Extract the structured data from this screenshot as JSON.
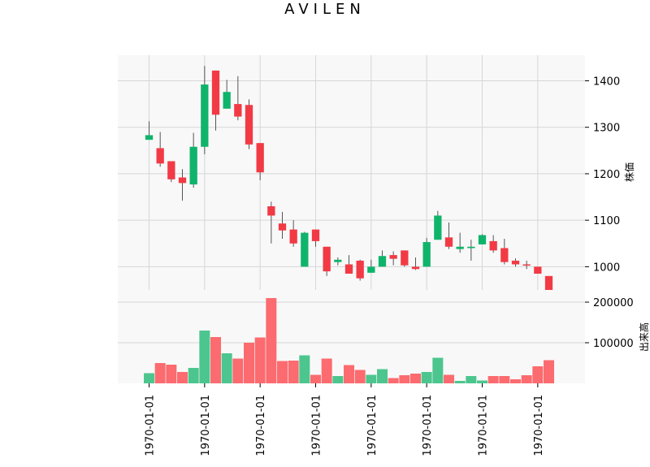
{
  "chart_data": {
    "type": "candlestick",
    "title": "AVILEN",
    "colors": {
      "up": "#0fb46b",
      "down": "#f23a45",
      "volume_up": "#4cc68e",
      "volume_down": "#fb6b6f",
      "wick": "#555555",
      "panel_bg": "#f8f8f8",
      "grid": "#d6d6d6"
    },
    "price_axis": {
      "label": "株価",
      "ticks": [
        1000,
        1100,
        1200,
        1300,
        1400
      ],
      "range": [
        950,
        1455
      ]
    },
    "volume_axis": {
      "label": "出来高",
      "ticks": [
        100000,
        200000
      ],
      "range": [
        0,
        230000
      ]
    },
    "x_tick_labels": [
      "1970-01-01",
      "1970-01-01",
      "1970-01-01",
      "1970-01-01",
      "1970-01-01",
      "1970-01-01",
      "1970-01-01",
      "1970-01-01"
    ],
    "candles": [
      {
        "open": 1273,
        "high": 1313,
        "low": 1273,
        "close": 1283,
        "volume": 25000
      },
      {
        "open": 1255,
        "high": 1290,
        "low": 1215,
        "close": 1222,
        "volume": 50000
      },
      {
        "open": 1227,
        "high": 1227,
        "low": 1182,
        "close": 1188,
        "volume": 46000
      },
      {
        "open": 1192,
        "high": 1210,
        "low": 1142,
        "close": 1180,
        "volume": 28000
      },
      {
        "open": 1177,
        "high": 1288,
        "low": 1170,
        "close": 1258,
        "volume": 38000
      },
      {
        "open": 1258,
        "high": 1432,
        "low": 1242,
        "close": 1392,
        "volume": 130000
      },
      {
        "open": 1422,
        "high": 1422,
        "low": 1293,
        "close": 1327,
        "volume": 114000
      },
      {
        "open": 1340,
        "high": 1402,
        "low": 1340,
        "close": 1376,
        "volume": 74000
      },
      {
        "open": 1350,
        "high": 1410,
        "low": 1315,
        "close": 1323,
        "volume": 61000
      },
      {
        "open": 1348,
        "high": 1360,
        "low": 1253,
        "close": 1263,
        "volume": 100000
      },
      {
        "open": 1266,
        "high": 1266,
        "low": 1186,
        "close": 1203,
        "volume": 113000
      },
      {
        "open": 1130,
        "high": 1140,
        "low": 1050,
        "close": 1110,
        "volume": 210000
      },
      {
        "open": 1093,
        "high": 1118,
        "low": 1060,
        "close": 1078,
        "volume": 55000
      },
      {
        "open": 1080,
        "high": 1100,
        "low": 1043,
        "close": 1050,
        "volume": 56000
      },
      {
        "open": 1000,
        "high": 1075,
        "low": 1000,
        "close": 1073,
        "volume": 69000
      },
      {
        "open": 1080,
        "high": 1080,
        "low": 1043,
        "close": 1055,
        "volume": 21000
      },
      {
        "open": 1043,
        "high": 1043,
        "low": 980,
        "close": 990,
        "volume": 61000
      },
      {
        "open": 1010,
        "high": 1020,
        "low": 1003,
        "close": 1015,
        "volume": 18000
      },
      {
        "open": 1005,
        "high": 1025,
        "low": 985,
        "close": 985,
        "volume": 45000
      },
      {
        "open": 1013,
        "high": 1015,
        "low": 970,
        "close": 975,
        "volume": 33000
      },
      {
        "open": 987,
        "high": 1015,
        "low": 987,
        "close": 1000,
        "volume": 21000
      },
      {
        "open": 1000,
        "high": 1035,
        "low": 1000,
        "close": 1023,
        "volume": 35000
      },
      {
        "open": 1025,
        "high": 1033,
        "low": 1003,
        "close": 1017,
        "volume": 13000
      },
      {
        "open": 1035,
        "high": 1035,
        "low": 1000,
        "close": 1003,
        "volume": 20000
      },
      {
        "open": 1000,
        "high": 1020,
        "low": 993,
        "close": 995,
        "volume": 24000
      },
      {
        "open": 1000,
        "high": 1062,
        "low": 1000,
        "close": 1053,
        "volume": 28000
      },
      {
        "open": 1058,
        "high": 1120,
        "low": 1058,
        "close": 1110,
        "volume": 63000
      },
      {
        "open": 1063,
        "high": 1095,
        "low": 1038,
        "close": 1043,
        "volume": 21000
      },
      {
        "open": 1038,
        "high": 1073,
        "low": 1030,
        "close": 1043,
        "volume": 6000
      },
      {
        "open": 1040,
        "high": 1058,
        "low": 1013,
        "close": 1043,
        "volume": 18000
      },
      {
        "open": 1048,
        "high": 1070,
        "low": 1048,
        "close": 1068,
        "volume": 7000
      },
      {
        "open": 1055,
        "high": 1068,
        "low": 1030,
        "close": 1035,
        "volume": 18000
      },
      {
        "open": 1040,
        "high": 1060,
        "low": 1005,
        "close": 1010,
        "volume": 18000
      },
      {
        "open": 1013,
        "high": 1018,
        "low": 1000,
        "close": 1005,
        "volume": 10000
      },
      {
        "open": 1005,
        "high": 1013,
        "low": 995,
        "close": 1003,
        "volume": 20000
      },
      {
        "open": 1000,
        "high": 1000,
        "low": 985,
        "close": 985,
        "volume": 42000
      },
      {
        "open": 980,
        "high": 980,
        "low": 945,
        "close": 948,
        "volume": 57000
      }
    ]
  }
}
